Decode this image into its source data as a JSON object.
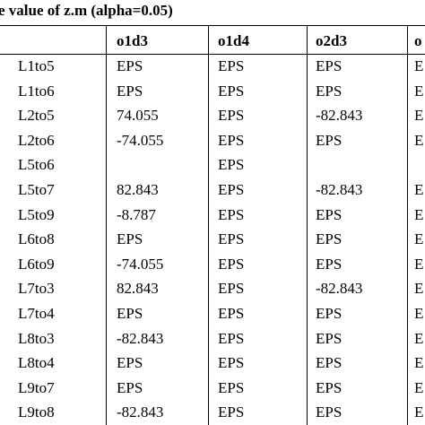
{
  "title": "e value of  z.m (alpha=0.05)",
  "table": {
    "header": [
      null,
      "o1d3",
      "o1d4",
      "o2d3",
      "o"
    ],
    "rows": [
      [
        "L1to5",
        "EPS",
        "EPS",
        "EPS",
        "E"
      ],
      [
        "L1to6",
        "EPS",
        "EPS",
        "EPS",
        "E"
      ],
      [
        "L2to5",
        "74.055",
        "EPS",
        "-82.843",
        "E"
      ],
      [
        "L2to6",
        "-74.055",
        "EPS",
        "EPS",
        "E"
      ],
      [
        "L5to6",
        null,
        "EPS",
        null,
        null
      ],
      [
        "L5to7",
        "82.843",
        "EPS",
        "-82.843",
        "E"
      ],
      [
        "L5to9",
        "-8.787",
        "EPS",
        "EPS",
        "E"
      ],
      [
        "L6to8",
        "EPS",
        "EPS",
        "EPS",
        "E"
      ],
      [
        "L6to9",
        "-74.055",
        "EPS",
        "EPS",
        "E"
      ],
      [
        "L7to3",
        "82.843",
        "EPS",
        "-82.843",
        "E"
      ],
      [
        "L7to4",
        "EPS",
        "EPS",
        "EPS",
        "E"
      ],
      [
        "L8to3",
        "-82.843",
        "EPS",
        "EPS",
        "E"
      ],
      [
        "L8to4",
        "EPS",
        "EPS",
        "EPS",
        "E"
      ],
      [
        "L9to7",
        "EPS",
        "EPS",
        "EPS",
        "E"
      ],
      [
        "L9to8",
        "-82.843",
        "EPS",
        "EPS",
        "E"
      ]
    ]
  }
}
